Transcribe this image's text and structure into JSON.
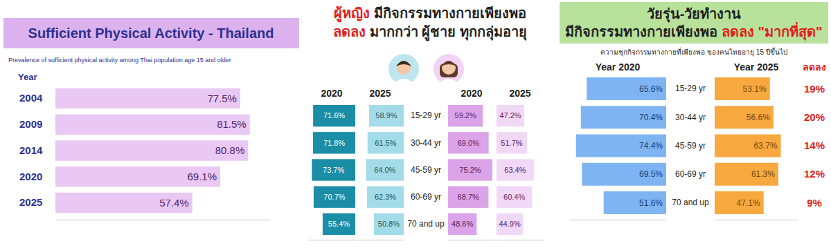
{
  "chart_data": [
    {
      "type": "bar",
      "orientation": "horizontal",
      "title": "Sufficient Physical Activity - Thailand",
      "subtitle": "Prevalence of sufficient physical activity among Thai population age 15 and older",
      "ylabel": "Year",
      "categories": [
        "2004",
        "2009",
        "2014",
        "2020",
        "2025"
      ],
      "values": [
        77.5,
        81.5,
        80.8,
        69.1,
        57.4
      ],
      "value_labels": [
        "77.5%",
        "81.5%",
        "80.8%",
        "69.1%",
        "57.4%"
      ],
      "color": "#e9c9f4",
      "xlim": [
        0,
        90
      ],
      "xticks": [],
      "data_labels": true,
      "tick_labels": "y"
    },
    {
      "type": "bar",
      "orientation": "horizontal",
      "title": [
        [
          {
            "text": "ผู้หญิง",
            "color": "#e0201b"
          },
          {
            "text": " มีกิจกรรมทางกายเพียงพอ"
          }
        ],
        [
          {
            "text": "ลดลง",
            "color": "#e0201b"
          },
          {
            "text": " มากกว่า ผู้ชาย ทุกกลุ่มอายุ"
          }
        ]
      ],
      "categories": [
        "15-29 yr",
        "30-44 yr",
        "45-59 yr",
        "60-69 yr",
        "70 and up"
      ],
      "series": [
        {
          "name": "2020",
          "color": "#1b8da6",
          "values": [
            71.6,
            71.8,
            73.7,
            70.7,
            55.4
          ],
          "value_labels": [
            "71.6%",
            "71.8%",
            "73.7%",
            "70.7%",
            "55.4%"
          ]
        },
        {
          "name": "2025",
          "color": "#a3dce8",
          "values": [
            58.9,
            61.5,
            64.0,
            62.3,
            50.8
          ],
          "value_labels": [
            "58.9%",
            "61.5%",
            "64.0%",
            "62.3%",
            "50.8%"
          ]
        },
        {
          "name": "2020",
          "color": "#dba3e8",
          "values": [
            59.2,
            69.0,
            75.2,
            68.7,
            48.6
          ],
          "value_labels": [
            "59.2%",
            "69.0%",
            "75.2%",
            "68.7%",
            "48.6%"
          ]
        },
        {
          "name": "2025",
          "color": "#f2d8f7",
          "values": [
            47.2,
            51.7,
            63.4,
            60.4,
            44.9
          ],
          "value_labels": [
            "47.2%",
            "51.7%",
            "63.4%",
            "60.4%",
            "44.9%"
          ]
        }
      ],
      "xlim": [
        0,
        80
      ],
      "xticks": [],
      "data_labels": true,
      "tick_labels": "y"
    },
    {
      "type": "bar",
      "orientation": "horizontal",
      "title": [
        [
          {
            "text": "วัยรุ่น-วัยทำงาน"
          }
        ],
        [
          {
            "text": "มีกิจกรรมทางกายเพียงพอ "
          },
          {
            "text": "ลดลง \"มากที่สุด\"",
            "color": "#e0201b"
          }
        ]
      ],
      "subtitle": "ความชุกกิจกรรมทางกายที่เพียงพอ ของคนไทยอายุ 15 ปีขึ้นไป",
      "categories": [
        "15-29 yr",
        "30-44 yr",
        "45-59 yr",
        "60-69 yr",
        "70 and up"
      ],
      "series": [
        {
          "name": "Year 2020",
          "color": "#7fb4f3",
          "values": [
            65.6,
            70.4,
            74.4,
            69.5,
            51.6
          ],
          "value_labels": [
            "65.6%",
            "70.4%",
            "74.4%",
            "69.5%",
            "51.6%"
          ]
        },
        {
          "name": "Year 2025",
          "color": "#f7a83e",
          "values": [
            53.1,
            56.6,
            63.7,
            61.3,
            47.1
          ],
          "value_labels": [
            "53.1%",
            "56.6%",
            "63.7%",
            "61.3%",
            "47.1%"
          ]
        }
      ],
      "change": {
        "name": "ลดลง",
        "color": "#e0201b",
        "values": [
          19,
          20,
          14,
          12,
          9
        ],
        "value_labels": [
          "19%",
          "20%",
          "14%",
          "12%",
          "9%"
        ]
      },
      "xlim": [
        0,
        80
      ],
      "xticks": [],
      "data_labels": true,
      "tick_labels": "y"
    }
  ]
}
